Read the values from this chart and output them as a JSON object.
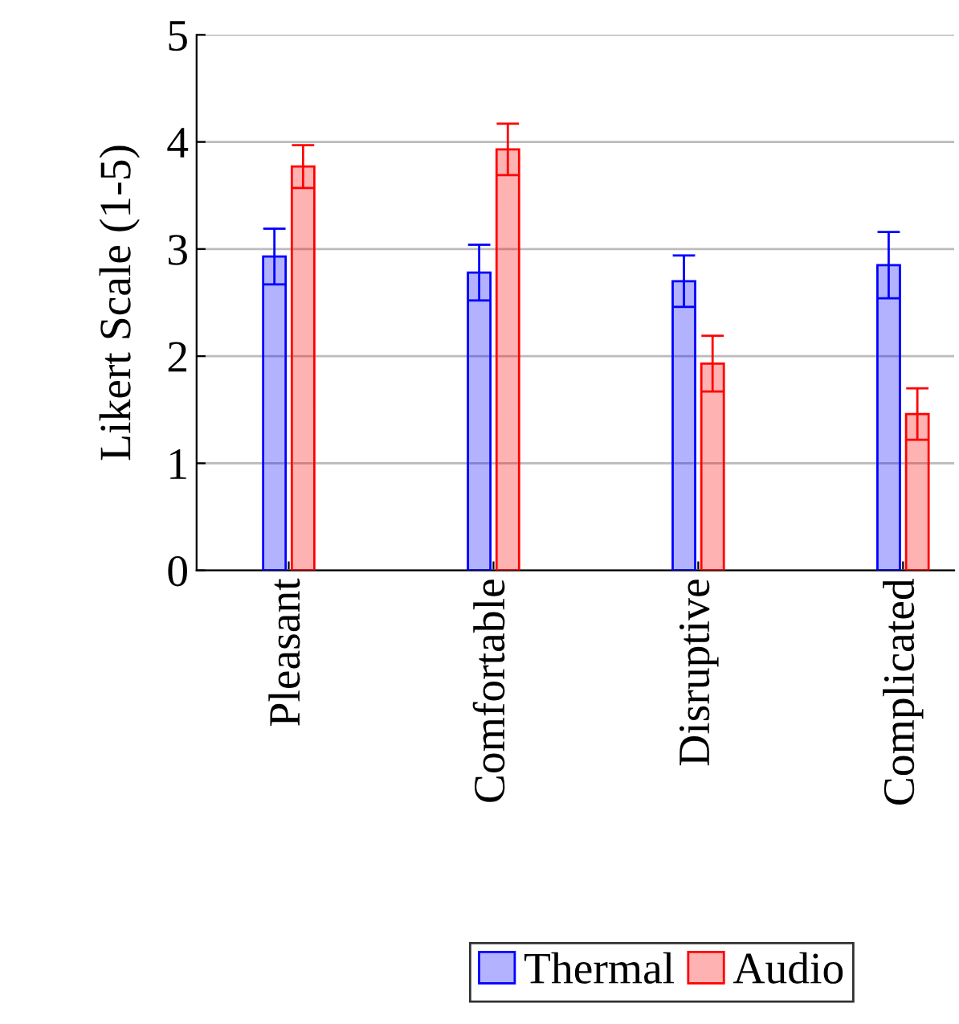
{
  "chart_data": {
    "type": "bar",
    "ylabel": "Likert Scale (1-5)",
    "categories": [
      "Pleasant",
      "Comfortable",
      "Disruptive",
      "Complicated"
    ],
    "series": [
      {
        "name": "Thermal",
        "color": "#0000ff",
        "values": [
          2.93,
          2.78,
          2.7,
          2.85
        ],
        "errors": [
          0.26,
          0.26,
          0.24,
          0.31
        ]
      },
      {
        "name": "Audio",
        "color": "#ff0000",
        "values": [
          3.77,
          3.93,
          1.93,
          1.46
        ],
        "errors": [
          0.2,
          0.24,
          0.26,
          0.24
        ]
      }
    ],
    "ylim": [
      0,
      5
    ],
    "yticks": [
      0,
      1,
      2,
      3,
      4,
      5
    ],
    "grid": "y",
    "legend": "bottom"
  }
}
